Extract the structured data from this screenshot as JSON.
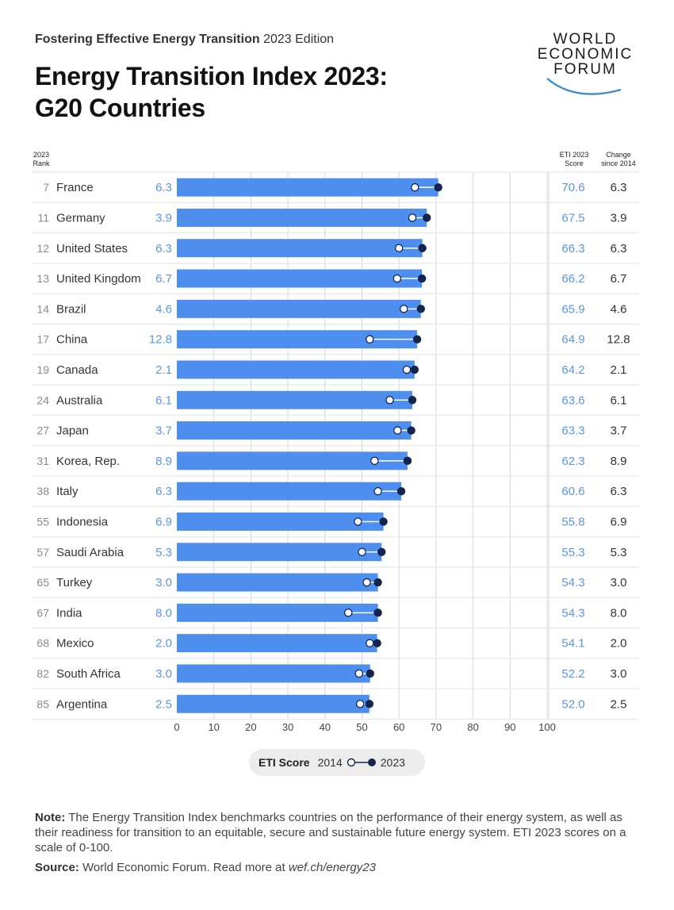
{
  "header": {
    "supertitle_bold": "Fostering Effective Energy Transition",
    "supertitle_rest": "2023 Edition",
    "title_line1": "Energy Transition Index 2023:",
    "title_line2": "G20 Countries",
    "logo": [
      "WORLD",
      "ECONOMIC",
      "FORUM"
    ]
  },
  "columns": {
    "rank_line1": "2023",
    "rank_line2": "Rank",
    "score_line1": "ETI 2023",
    "score_line2": "Score",
    "change_line1": "Change",
    "change_line2": "since 2014"
  },
  "legend": {
    "title": "ETI Score",
    "label_2014": "2014",
    "label_2023": "2023"
  },
  "footer": {
    "note_label": "Note:",
    "note_text": " The Energy Transition Index benchmarks countries on the performance of their energy system, as well as their readiness for transition to an equitable, secure and sustainable future energy system. ETI 2023 scores on a scale of 0-100.",
    "source_label": "Source:",
    "source_text": " World Economic Forum. Read more at ",
    "source_link": "wef.ch/energy23"
  },
  "colors": {
    "bar": "#4d8eee",
    "dot_2023": "#14264f",
    "dot_2014": "#ffffff",
    "value_text": "#5b95e8",
    "grid": "#d7d7d7"
  },
  "chart_data": {
    "type": "bar",
    "orientation": "horizontal",
    "xlim": [
      0,
      100
    ],
    "xticks": [
      0,
      10,
      20,
      30,
      40,
      50,
      60,
      70,
      80,
      90,
      100
    ],
    "grid": true,
    "rows": [
      {
        "rank": "7",
        "country": "France",
        "change_left": "6.3",
        "score": 70.6,
        "score_2014": 64.3,
        "score_label": "70.6",
        "change": "6.3"
      },
      {
        "rank": "11",
        "country": "Germany",
        "change_left": "3.9",
        "score": 67.5,
        "score_2014": 63.6,
        "score_label": "67.5",
        "change": "3.9"
      },
      {
        "rank": "12",
        "country": "United States",
        "change_left": "6.3",
        "score": 66.3,
        "score_2014": 60.0,
        "score_label": "66.3",
        "change": "6.3"
      },
      {
        "rank": "13",
        "country": "United Kingdom",
        "change_left": "6.7",
        "score": 66.2,
        "score_2014": 59.5,
        "score_label": "66.2",
        "change": "6.7"
      },
      {
        "rank": "14",
        "country": "Brazil",
        "change_left": "4.6",
        "score": 65.9,
        "score_2014": 61.3,
        "score_label": "65.9",
        "change": "4.6"
      },
      {
        "rank": "17",
        "country": "China",
        "change_left": "12.8",
        "score": 64.9,
        "score_2014": 52.1,
        "score_label": "64.9",
        "change": "12.8"
      },
      {
        "rank": "19",
        "country": "Canada",
        "change_left": "2.1",
        "score": 64.2,
        "score_2014": 62.1,
        "score_label": "64.2",
        "change": "2.1"
      },
      {
        "rank": "24",
        "country": "Australia",
        "change_left": "6.1",
        "score": 63.6,
        "score_2014": 57.5,
        "score_label": "63.6",
        "change": "6.1"
      },
      {
        "rank": "27",
        "country": "Japan",
        "change_left": "3.7",
        "score": 63.3,
        "score_2014": 59.6,
        "score_label": "63.3",
        "change": "3.7"
      },
      {
        "rank": "31",
        "country": "Korea, Rep.",
        "change_left": "8.9",
        "score": 62.3,
        "score_2014": 53.4,
        "score_label": "62.3",
        "change": "8.9"
      },
      {
        "rank": "38",
        "country": "Italy",
        "change_left": "6.3",
        "score": 60.6,
        "score_2014": 54.3,
        "score_label": "60.6",
        "change": "6.3"
      },
      {
        "rank": "55",
        "country": "Indonesia",
        "change_left": "6.9",
        "score": 55.8,
        "score_2014": 48.9,
        "score_label": "55.8",
        "change": "6.9"
      },
      {
        "rank": "57",
        "country": "Saudi Arabia",
        "change_left": "5.3",
        "score": 55.3,
        "score_2014": 50.0,
        "score_label": "55.3",
        "change": "5.3"
      },
      {
        "rank": "65",
        "country": "Turkey",
        "change_left": "3.0",
        "score": 54.3,
        "score_2014": 51.3,
        "score_label": "54.3",
        "change": "3.0"
      },
      {
        "rank": "67",
        "country": "India",
        "change_left": "8.0",
        "score": 54.3,
        "score_2014": 46.3,
        "score_label": "54.3",
        "change": "8.0"
      },
      {
        "rank": "68",
        "country": "Mexico",
        "change_left": "2.0",
        "score": 54.1,
        "score_2014": 52.1,
        "score_label": "54.1",
        "change": "2.0"
      },
      {
        "rank": "82",
        "country": "South Africa",
        "change_left": "3.0",
        "score": 52.2,
        "score_2014": 49.2,
        "score_label": "52.2",
        "change": "3.0"
      },
      {
        "rank": "85",
        "country": "Argentina",
        "change_left": "2.5",
        "score": 52.0,
        "score_2014": 49.5,
        "score_label": "52.0",
        "change": "2.5"
      }
    ]
  }
}
